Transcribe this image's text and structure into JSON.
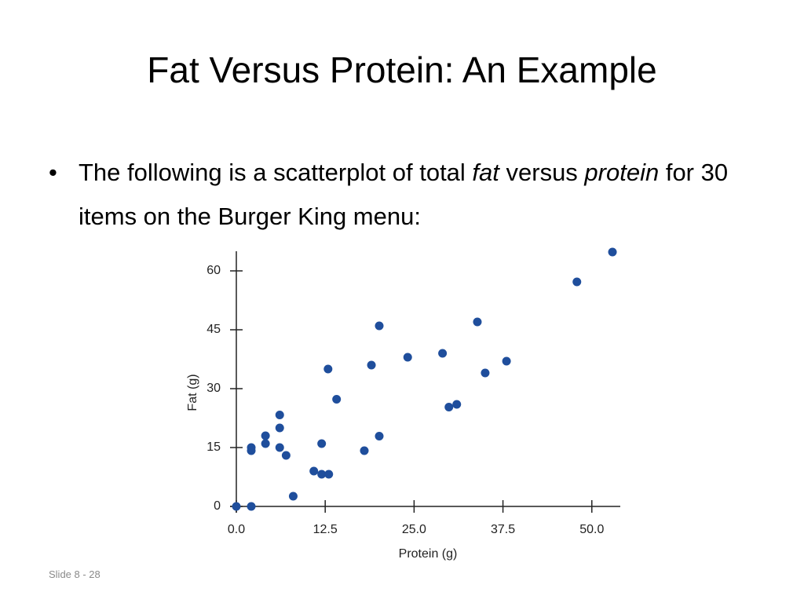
{
  "slide": {
    "title": "Fat Versus Protein: An Example",
    "bullet": [
      "The following is a scatterplot of total ",
      "fat",
      " versus ",
      "protein",
      " for 30 items on the Burger King menu:"
    ],
    "footer": "Slide 8 - 28"
  },
  "chart_data": {
    "type": "scatter",
    "color": "#1f4e9c",
    "x_label": "Protein (g)",
    "y_label": "Fat (g)",
    "x": [
      0,
      2.1,
      2.1,
      2.1,
      4.1,
      4.1,
      6.1,
      6.1,
      6.1,
      7,
      8,
      10.9,
      12,
      13,
      12,
      12.9,
      14.1,
      18,
      19,
      20.1,
      20.1,
      24.1,
      29,
      29.9,
      31,
      33.9,
      35,
      38,
      47.9,
      52.9
    ],
    "values": [
      0,
      0,
      15,
      14.2,
      18,
      16,
      23.3,
      20,
      15,
      13,
      2.6,
      9,
      8.2,
      8.2,
      16,
      35,
      27.3,
      14.2,
      36,
      46,
      17.9,
      38,
      39,
      25.3,
      26,
      47,
      34,
      37,
      57.2,
      64.8
    ],
    "xlim": [
      0,
      54
    ],
    "ylim": [
      0,
      65
    ],
    "xticks": [
      {
        "value": 0,
        "label": "0.0"
      },
      12.5,
      {
        "value": 25,
        "label": "25.0"
      },
      37.5,
      {
        "value": 50,
        "label": "50.0"
      }
    ],
    "yticks": [
      0,
      15,
      30,
      45,
      60
    ]
  }
}
